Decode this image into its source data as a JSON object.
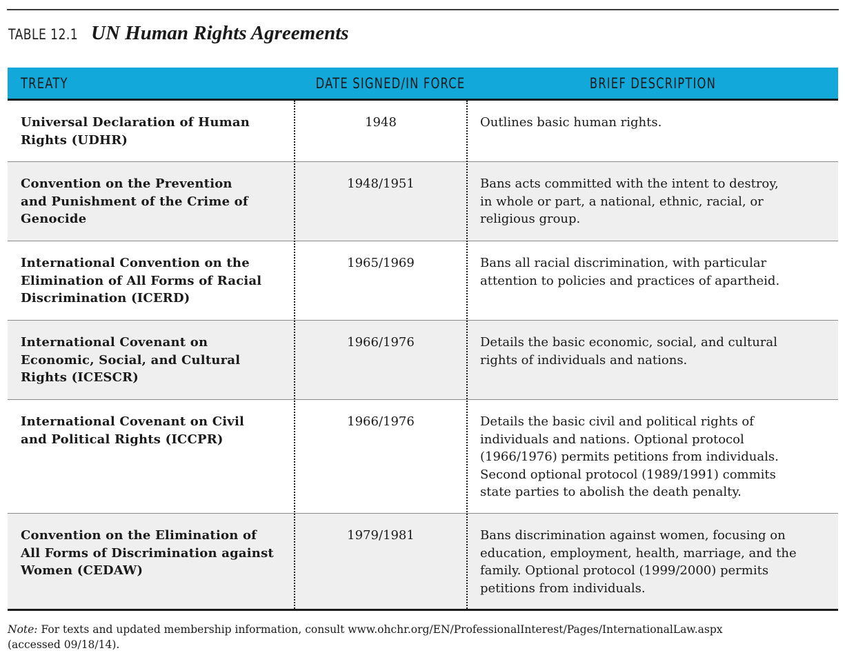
{
  "table": {
    "number": "TABLE 12.1",
    "title": "UN Human Rights Agreements",
    "headers": {
      "treaty": "TREATY",
      "date": "DATE SIGNED/IN FORCE",
      "description": "BRIEF DESCRIPTION"
    },
    "rows": [
      {
        "treaty": "Universal Declaration of Human Rights (UDHR)",
        "treaty_lines": [
          "Universal Declaration of Human",
          "Rights (UDHR)"
        ],
        "date": "1948",
        "description_lines": [
          "Outlines basic human rights."
        ]
      },
      {
        "treaty_lines": [
          "Convention on the Prevention",
          "and Punishment of the Crime of",
          "Genocide"
        ],
        "date": "1948/1951",
        "description_lines": [
          "Bans acts committed with the intent to destroy,",
          "in whole or part, a national, ethnic, racial, or",
          "religious group."
        ]
      },
      {
        "treaty_lines": [
          "International Convention on the",
          "Elimination of All Forms of Racial",
          "Discrimination (ICERD)"
        ],
        "date": "1965/1969",
        "description_lines": [
          "Bans all racial discrimination, with particular",
          "attention to policies and practices of apartheid."
        ]
      },
      {
        "treaty_lines": [
          "International Covenant on",
          "Economic, Social, and Cultural",
          "Rights (ICESCR)"
        ],
        "date": "1966/1976",
        "description_lines": [
          "Details the basic economic, social, and cultural",
          "rights of individuals and nations."
        ]
      },
      {
        "treaty_lines": [
          "International Covenant on Civil",
          "and Political Rights (ICCPR)"
        ],
        "date": "1966/1976",
        "description_lines": [
          "Details the basic civil and political rights of",
          "individuals and nations. Optional protocol",
          "(1966/1976) permits petitions from individuals.",
          "Second optional protocol (1989/1991) commits",
          "state parties to abolish the death penalty."
        ]
      },
      {
        "treaty_lines": [
          "Convention on the Elimination of",
          "All Forms of Discrimination against",
          "Women (CEDAW)"
        ],
        "date": "1979/1981",
        "description_lines": [
          "Bans discrimination against women, focusing on",
          "education, employment, health, marriage, and the",
          "family. Optional protocol (1999/2000) permits",
          "petitions from individuals."
        ]
      }
    ]
  },
  "note": {
    "label": "Note:",
    "line1": " For texts and updated membership information, consult www.ohchr.org/EN/ProfessionalInterest/Pages/InternationalLaw.aspx",
    "line2": "(accessed 09/18/14)."
  },
  "colors": {
    "header_bg": "#12a8d9",
    "alt_row_bg": "#efefef",
    "rule": "#1a1a1a"
  }
}
